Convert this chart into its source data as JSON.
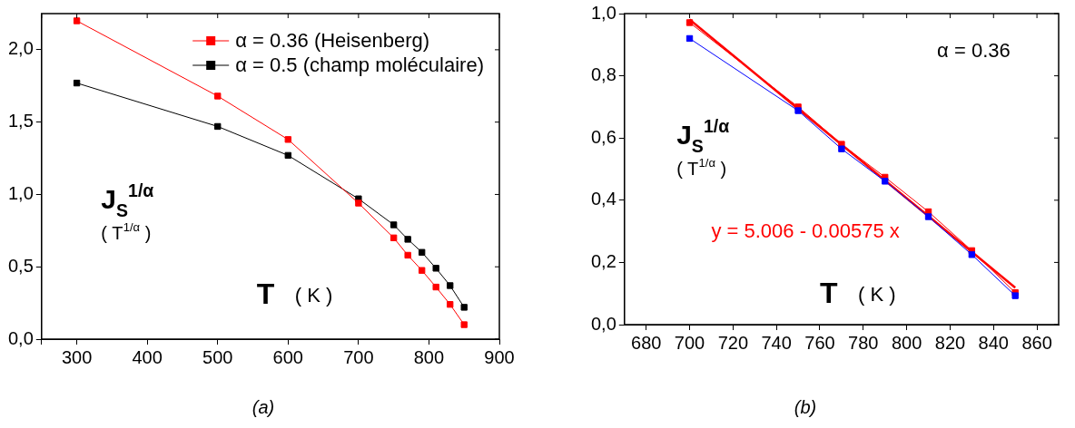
{
  "chart_data": [
    {
      "type": "line",
      "xlabel": "T ( K )",
      "ylabel": "J$_{S}$$^{1/α}$\n( T$^{1/α}$ )",
      "marker": "square",
      "legend": "top right",
      "grid": false,
      "xlim": [
        250,
        900
      ],
      "xticks": [
        {
          "value": 250,
          "label": null
        },
        300,
        400,
        500,
        600,
        700,
        800,
        900
      ],
      "ylim": [
        0,
        2.25
      ],
      "yticks": [
        {
          "value": 0,
          "label": "0,0"
        },
        {
          "value": 0.5,
          "label": "0,5"
        },
        {
          "value": 1,
          "label": "1,0"
        },
        {
          "value": 1.5,
          "label": "1,5"
        },
        {
          "value": 2,
          "label": "2,0"
        }
      ],
      "annotations": [
        "(a)"
      ],
      "series": [
        {
          "name": "α = 0.36 (Heisenberg)",
          "color": "#ff0000",
          "x": [
            300,
            500,
            600,
            700,
            750,
            770,
            790,
            810,
            830,
            850
          ],
          "values": [
            2.2,
            1.68,
            1.38,
            0.94,
            0.7,
            0.58,
            0.475,
            0.36,
            0.24,
            0.1
          ]
        },
        {
          "name": "α = 0.5 (champ moléculaire)",
          "color": "#000000",
          "x": [
            300,
            500,
            600,
            700,
            750,
            770,
            790,
            810,
            830,
            850
          ],
          "values": [
            1.77,
            1.47,
            1.27,
            0.97,
            0.79,
            0.69,
            0.6,
            0.49,
            0.37,
            0.22
          ]
        }
      ]
    },
    {
      "type": "line",
      "xlabel": "T ( K )",
      "ylabel": "J$_{S}$$^{1/α}$\n( T$^{1/α}$ )",
      "marker": "square",
      "grid": false,
      "xlim": [
        670,
        870
      ],
      "xticks": [
        680,
        700,
        720,
        740,
        760,
        780,
        800,
        820,
        840,
        860
      ],
      "ylim": [
        0,
        1
      ],
      "yticks": [
        {
          "value": 0,
          "label": "0,0"
        },
        {
          "value": 0.2,
          "label": "0,2"
        },
        {
          "value": 0.4,
          "label": "0,4"
        },
        {
          "value": 0.6,
          "label": "0,6"
        },
        {
          "value": 0.8,
          "label": "0,8"
        },
        {
          "value": 1,
          "label": "1,0"
        }
      ],
      "annotations": [
        "α = 0.36",
        "y = 5.006 - 0.00575 x",
        "(b)"
      ],
      "series": [
        {
          "color": "#0000ff",
          "x": [
            700,
            750,
            770,
            790,
            810,
            830,
            850
          ],
          "values": [
            0.92,
            0.688,
            0.565,
            0.461,
            0.347,
            0.225,
            0.093
          ]
        },
        {
          "color": "#ff0000",
          "x": [
            700,
            750,
            770,
            790,
            810,
            830,
            850
          ],
          "values": [
            0.971,
            0.7,
            0.58,
            0.474,
            0.363,
            0.238,
            0.103
          ]
        },
        {
          "type": "line",
          "marker": "none",
          "color": "#ff0000",
          "x": [
            700,
            850
          ],
          "values": [
            0.981,
            0.119
          ]
        }
      ]
    }
  ]
}
